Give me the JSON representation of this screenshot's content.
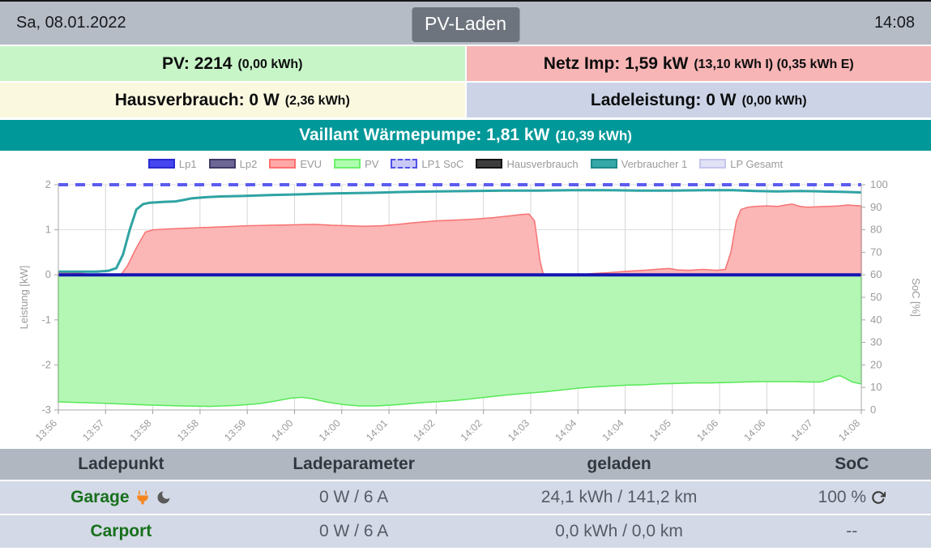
{
  "header": {
    "date": "Sa, 08.01.2022",
    "title": "PV-Laden",
    "time": "14:08"
  },
  "status_boxes": {
    "pv": {
      "label": "PV: 2214",
      "detail": "(0,00 kWh)",
      "bg": "#c8f5c8"
    },
    "netz": {
      "label": "Netz Imp: 1,59 kW",
      "detail": "(13,10 kWh I) (0,35 kWh E)",
      "bg": "#f8b5b5"
    },
    "haus": {
      "label": "Hausverbrauch: 0 W",
      "detail": "(2,36 kWh)",
      "bg": "#fbf8e0"
    },
    "lade": {
      "label": "Ladeleistung: 0 W",
      "detail": "(0,00 kWh)",
      "bg": "#ccd3e6"
    }
  },
  "device_bar": {
    "label": "Vaillant Wärmepumpe: 1,81 kW",
    "detail": "(10,39 kWh)",
    "bg": "#009899"
  },
  "chart_data": {
    "type": "area",
    "title": "",
    "xlabel": "",
    "ylabel_left": "Leistung [kW]",
    "ylabel_right": "SoC [%]",
    "ylim_left": [
      -3,
      2
    ],
    "ylim_right": [
      0,
      100
    ],
    "yticks_left": [
      2,
      1,
      0,
      -1,
      -2,
      -3
    ],
    "yticks_right": [
      100,
      90,
      80,
      70,
      60,
      50,
      40,
      30,
      20,
      10,
      0
    ],
    "grid": true,
    "legend_position": "top",
    "x_range_seconds": [
      0,
      720
    ],
    "x_tick_labels": [
      "13:56",
      "13:57",
      "13:58",
      "13:58",
      "13:59",
      "14:00",
      "14:00",
      "14:01",
      "14:02",
      "14:02",
      "14:03",
      "14:04",
      "14:04",
      "14:05",
      "14:06",
      "14:06",
      "14:07",
      "14:08"
    ],
    "legend": [
      {
        "name": "Lp1",
        "fill": "#4646f0",
        "border": "#2a2ad0",
        "dashed": false
      },
      {
        "name": "Lp2",
        "fill": "#6b6694",
        "border": "#403a66",
        "dashed": false
      },
      {
        "name": "EVU",
        "fill": "#ffa8a8",
        "border": "#ff7070",
        "dashed": false
      },
      {
        "name": "PV",
        "fill": "#adffad",
        "border": "#6cf06c",
        "dashed": false
      },
      {
        "name": "LP1 SoC",
        "fill": "#c9c9f8",
        "border": "#5050e8",
        "dashed": true
      },
      {
        "name": "Hausverbrauch",
        "fill": "#3c3c3c",
        "border": "#141414",
        "dashed": false
      },
      {
        "name": "Verbraucher 1",
        "fill": "#35a8a8",
        "border": "#1d8888",
        "dashed": false
      },
      {
        "name": "LP Gesamt",
        "fill": "#e2e2f6",
        "border": "#c6c6ee",
        "dashed": false
      }
    ],
    "series": [
      {
        "name": "EVU",
        "type": "area",
        "axis": "left",
        "color": "#f87272",
        "fill": "#fbb6b6",
        "width": 1.5,
        "points": [
          [
            0,
            0.05
          ],
          [
            20,
            0.04
          ],
          [
            35,
            -0.02
          ],
          [
            45,
            -0.07
          ],
          [
            55,
            -0.04
          ],
          [
            62,
            0.2
          ],
          [
            70,
            0.6
          ],
          [
            78,
            0.95
          ],
          [
            85,
            1.0
          ],
          [
            100,
            1.02
          ],
          [
            120,
            1.04
          ],
          [
            150,
            1.07
          ],
          [
            170,
            1.09
          ],
          [
            190,
            1.1
          ],
          [
            210,
            1.11
          ],
          [
            230,
            1.12
          ],
          [
            245,
            1.1
          ],
          [
            260,
            1.09
          ],
          [
            275,
            1.08
          ],
          [
            290,
            1.09
          ],
          [
            305,
            1.12
          ],
          [
            320,
            1.16
          ],
          [
            340,
            1.2
          ],
          [
            360,
            1.22
          ],
          [
            375,
            1.24
          ],
          [
            390,
            1.27
          ],
          [
            405,
            1.31
          ],
          [
            415,
            1.34
          ],
          [
            422,
            1.35
          ],
          [
            427,
            1.2
          ],
          [
            432,
            0.3
          ],
          [
            436,
            -0.1
          ],
          [
            442,
            -0.13
          ],
          [
            448,
            -0.1
          ],
          [
            455,
            -0.05
          ],
          [
            465,
            0.0
          ],
          [
            480,
            0.03
          ],
          [
            495,
            0.05
          ],
          [
            510,
            0.08
          ],
          [
            525,
            0.1
          ],
          [
            540,
            0.13
          ],
          [
            548,
            0.14
          ],
          [
            555,
            0.11
          ],
          [
            565,
            0.1
          ],
          [
            578,
            0.12
          ],
          [
            590,
            0.1
          ],
          [
            598,
            0.12
          ],
          [
            603,
            0.5
          ],
          [
            608,
            1.2
          ],
          [
            612,
            1.45
          ],
          [
            618,
            1.5
          ],
          [
            625,
            1.52
          ],
          [
            635,
            1.53
          ],
          [
            645,
            1.52
          ],
          [
            652,
            1.55
          ],
          [
            658,
            1.57
          ],
          [
            665,
            1.52
          ],
          [
            672,
            1.5
          ],
          [
            680,
            1.51
          ],
          [
            690,
            1.52
          ],
          [
            700,
            1.53
          ],
          [
            708,
            1.55
          ],
          [
            714,
            1.54
          ],
          [
            720,
            1.53
          ]
        ]
      },
      {
        "name": "PV",
        "type": "area",
        "axis": "left",
        "color": "#57e857",
        "fill": "#b4f7b4",
        "width": 1.5,
        "points": [
          [
            0,
            -2.82
          ],
          [
            25,
            -2.84
          ],
          [
            50,
            -2.86
          ],
          [
            80,
            -2.89
          ],
          [
            110,
            -2.91
          ],
          [
            135,
            -2.92
          ],
          [
            160,
            -2.9
          ],
          [
            180,
            -2.86
          ],
          [
            195,
            -2.8
          ],
          [
            208,
            -2.74
          ],
          [
            218,
            -2.72
          ],
          [
            228,
            -2.75
          ],
          [
            240,
            -2.82
          ],
          [
            255,
            -2.88
          ],
          [
            270,
            -2.91
          ],
          [
            285,
            -2.91
          ],
          [
            300,
            -2.89
          ],
          [
            315,
            -2.86
          ],
          [
            330,
            -2.83
          ],
          [
            345,
            -2.81
          ],
          [
            360,
            -2.78
          ],
          [
            375,
            -2.74
          ],
          [
            390,
            -2.7
          ],
          [
            405,
            -2.66
          ],
          [
            420,
            -2.63
          ],
          [
            435,
            -2.6
          ],
          [
            450,
            -2.56
          ],
          [
            465,
            -2.52
          ],
          [
            480,
            -2.49
          ],
          [
            495,
            -2.47
          ],
          [
            510,
            -2.45
          ],
          [
            525,
            -2.44
          ],
          [
            540,
            -2.42
          ],
          [
            555,
            -2.41
          ],
          [
            570,
            -2.4
          ],
          [
            585,
            -2.4
          ],
          [
            600,
            -2.39
          ],
          [
            615,
            -2.38
          ],
          [
            630,
            -2.37
          ],
          [
            645,
            -2.37
          ],
          [
            660,
            -2.37
          ],
          [
            672,
            -2.38
          ],
          [
            683,
            -2.38
          ],
          [
            690,
            -2.33
          ],
          [
            696,
            -2.26
          ],
          [
            701,
            -2.24
          ],
          [
            706,
            -2.3
          ],
          [
            712,
            -2.38
          ],
          [
            720,
            -2.42
          ]
        ]
      },
      {
        "name": "Verbraucher 1",
        "type": "line",
        "axis": "left",
        "color": "#2fa3a3",
        "width": 3,
        "points": [
          [
            0,
            0.07
          ],
          [
            35,
            0.07
          ],
          [
            45,
            0.09
          ],
          [
            52,
            0.15
          ],
          [
            58,
            0.45
          ],
          [
            64,
            1.0
          ],
          [
            70,
            1.45
          ],
          [
            76,
            1.57
          ],
          [
            82,
            1.6
          ],
          [
            95,
            1.62
          ],
          [
            105,
            1.63
          ],
          [
            112,
            1.66
          ],
          [
            120,
            1.7
          ],
          [
            130,
            1.72
          ],
          [
            145,
            1.74
          ],
          [
            165,
            1.75
          ],
          [
            190,
            1.77
          ],
          [
            220,
            1.79
          ],
          [
            250,
            1.81
          ],
          [
            280,
            1.82
          ],
          [
            310,
            1.84
          ],
          [
            340,
            1.85
          ],
          [
            370,
            1.86
          ],
          [
            400,
            1.87
          ],
          [
            430,
            1.87
          ],
          [
            460,
            1.88
          ],
          [
            490,
            1.88
          ],
          [
            520,
            1.87
          ],
          [
            550,
            1.87
          ],
          [
            580,
            1.88
          ],
          [
            605,
            1.88
          ],
          [
            625,
            1.86
          ],
          [
            645,
            1.85
          ],
          [
            665,
            1.86
          ],
          [
            685,
            1.85
          ],
          [
            705,
            1.84
          ],
          [
            720,
            1.83
          ]
        ]
      },
      {
        "name": "LP1 SoC",
        "type": "line",
        "axis": "right",
        "color": "#5b5bf0",
        "width": 4,
        "dash": "12 9",
        "points": [
          [
            0,
            100
          ],
          [
            720,
            100
          ]
        ]
      },
      {
        "name": "Lp1",
        "type": "line",
        "axis": "left",
        "color": "#1515b2",
        "width": 4,
        "points": [
          [
            0,
            0
          ],
          [
            720,
            0
          ]
        ]
      }
    ]
  },
  "table": {
    "headers": [
      "Ladepunkt",
      "Ladeparameter",
      "geladen",
      "SoC"
    ],
    "rows": [
      {
        "name": "Garage",
        "ladeparameter": "0 W / 6 A",
        "geladen": "24,1 kWh / 141,2 km",
        "soc": "100 %"
      },
      {
        "name": "Carport",
        "ladeparameter": "0 W / 6 A",
        "geladen": "0,0 kWh / 0,0 km",
        "soc": "--"
      }
    ]
  }
}
